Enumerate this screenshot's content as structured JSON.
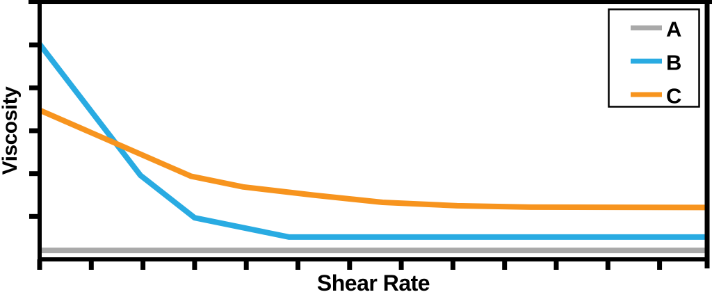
{
  "chart_data": {
    "type": "line",
    "title": "",
    "xlabel": "Shear Rate",
    "ylabel": "Viscosity",
    "background_color": "#ffffff",
    "axis_color": "#000000",
    "grid": false,
    "tick_labels_shown": false,
    "x_axis": {
      "min": 0,
      "max": 12.92,
      "ticks": [
        0,
        1,
        2,
        3,
        4,
        5,
        6,
        7,
        8,
        9,
        10,
        11,
        12
      ]
    },
    "y_axis": {
      "min": 0,
      "max": 6,
      "ticks": [
        1,
        2,
        3,
        4,
        5
      ]
    },
    "legend": {
      "position": "top-right",
      "border_color": "#000000",
      "fill_color": "#ffffff",
      "entries": [
        "A",
        "B",
        "C"
      ]
    },
    "series": [
      {
        "name": "A",
        "color": "#A9A9A9",
        "points": [
          [
            0,
            0.21
          ],
          [
            12.92,
            0.21
          ]
        ]
      },
      {
        "name": "B",
        "color": "#29ABE2",
        "points": [
          [
            0,
            5.02
          ],
          [
            1.95,
            1.96
          ],
          [
            3.0,
            0.97
          ],
          [
            4.83,
            0.52
          ],
          [
            12.92,
            0.52
          ]
        ]
      },
      {
        "name": "C",
        "color": "#F7941E",
        "points": [
          [
            0,
            3.48
          ],
          [
            2.93,
            1.94
          ],
          [
            3.94,
            1.69
          ],
          [
            5.29,
            1.5
          ],
          [
            6.64,
            1.33
          ],
          [
            8.08,
            1.25
          ],
          [
            9.41,
            1.22
          ],
          [
            12.92,
            1.21
          ]
        ]
      }
    ]
  }
}
